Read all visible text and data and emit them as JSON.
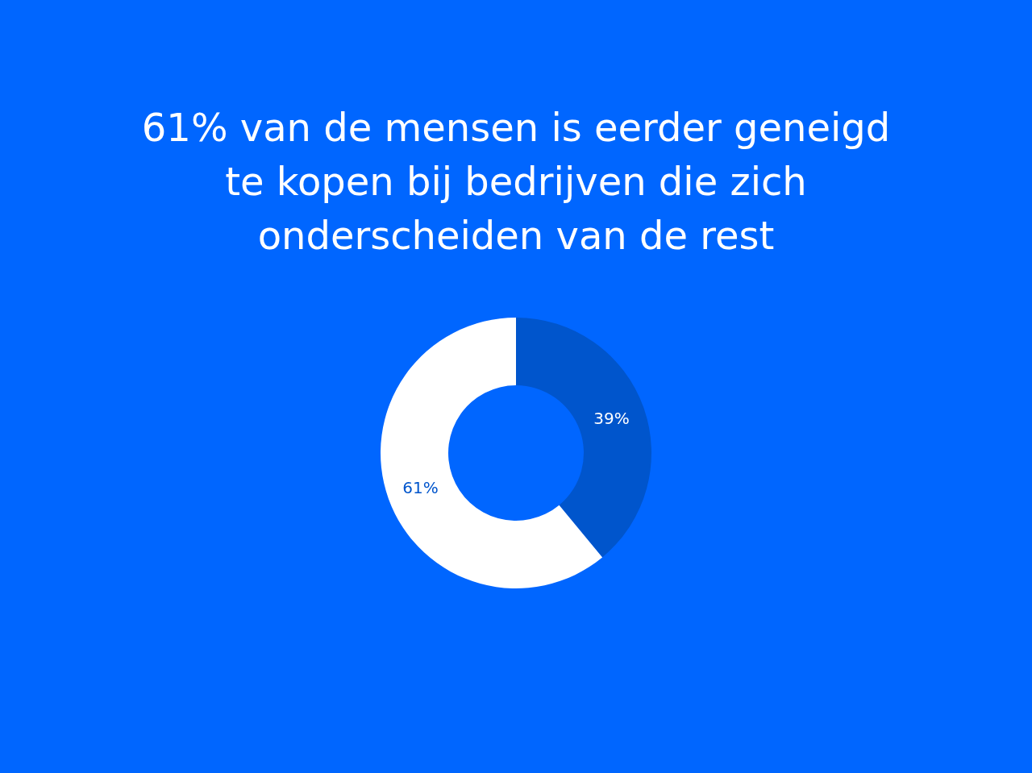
{
  "chart_data": {
    "type": "donut",
    "title": "61% van de mensen is eerder geneigd te kopen bij bedrijven die zich onderscheiden van de rest",
    "categories": [
      null,
      null
    ],
    "values": [
      39,
      61
    ],
    "colors": [
      "#0055cc",
      "#ffffff"
    ],
    "value_labels": [
      "39%",
      "61%"
    ]
  }
}
